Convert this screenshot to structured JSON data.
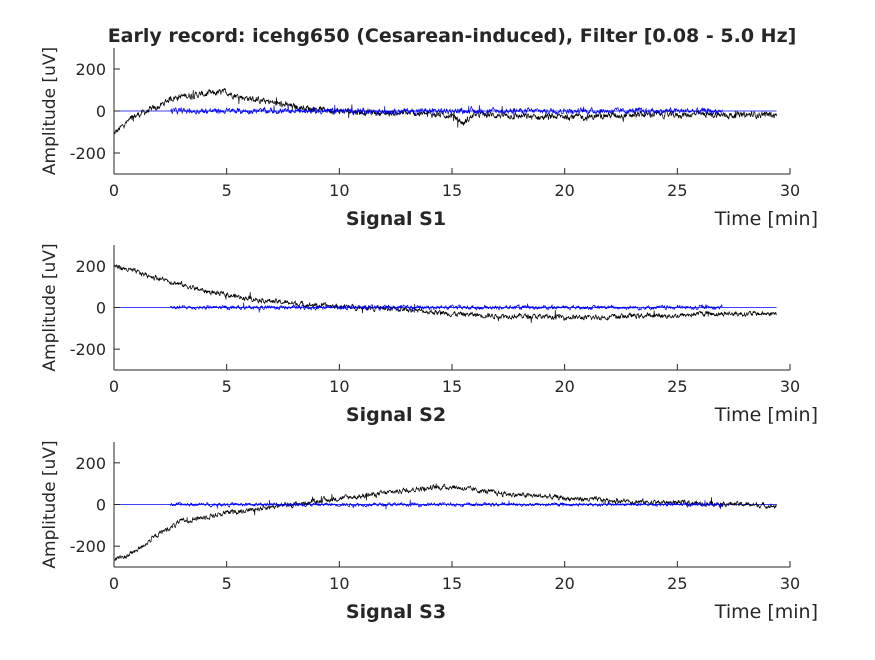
{
  "figure": {
    "title": "Early record: icehg650 (Cesarean-induced), Filter [0.08 - 5.0 Hz]"
  },
  "colors": {
    "raw": "#000000",
    "filtered": "#0000ff",
    "axis": "#262626"
  },
  "chart_data": [
    {
      "type": "line",
      "subplot_label": "Signal S1",
      "xlabel": "Time [min]",
      "ylabel": "Amplitude [uV]",
      "xlim": [
        0,
        30
      ],
      "ylim": [
        -300,
        300
      ],
      "xticks": [
        0,
        5,
        10,
        15,
        20,
        25,
        30
      ],
      "yticks": [
        200,
        0,
        -200
      ],
      "grid": false,
      "series": [
        {
          "color": "#000000",
          "x": [
            0,
            0.5,
            1,
            1.5,
            2,
            2.5,
            3,
            3.5,
            4,
            4.5,
            5,
            5.5,
            6,
            6.5,
            7,
            7.5,
            8,
            8.5,
            9,
            9.5,
            10,
            11,
            12,
            13,
            14,
            15,
            15.5,
            16,
            17,
            18,
            19,
            20,
            21,
            22,
            23,
            24,
            25,
            26,
            27,
            28,
            29,
            29.4
          ],
          "y": [
            -110,
            -60,
            -20,
            0,
            20,
            60,
            70,
            75,
            80,
            85,
            90,
            70,
            60,
            50,
            40,
            30,
            20,
            15,
            10,
            5,
            0,
            -5,
            -10,
            -10,
            -15,
            -20,
            -60,
            -15,
            -20,
            -25,
            -30,
            -25,
            -30,
            -20,
            -20,
            -15,
            -20,
            -15,
            -20,
            -20,
            -15,
            -20
          ],
          "noise": 25
        },
        {
          "color": "#0000ff",
          "x": [
            2.5,
            27
          ],
          "y": [
            0,
            0
          ],
          "noise": 22
        }
      ]
    },
    {
      "type": "line",
      "subplot_label": "Signal S2",
      "xlabel": "Time [min]",
      "ylabel": "Amplitude [uV]",
      "xlim": [
        0,
        30
      ],
      "ylim": [
        -300,
        300
      ],
      "xticks": [
        0,
        5,
        10,
        15,
        20,
        25,
        30
      ],
      "yticks": [
        200,
        0,
        -200
      ],
      "grid": false,
      "series": [
        {
          "color": "#000000",
          "x": [
            0,
            1,
            2,
            3,
            4,
            5,
            6,
            7,
            8,
            9,
            10,
            11,
            12,
            13,
            14,
            15,
            16,
            17,
            18,
            19,
            20,
            21,
            22,
            23,
            24,
            25,
            26,
            27,
            28,
            29,
            29.4
          ],
          "y": [
            200,
            170,
            140,
            110,
            80,
            60,
            45,
            30,
            20,
            10,
            5,
            0,
            -5,
            -10,
            -20,
            -30,
            -35,
            -40,
            -40,
            -45,
            -45,
            -50,
            -45,
            -40,
            -40,
            -40,
            -30,
            -30,
            -30,
            -30,
            -30
          ],
          "noise": 20
        },
        {
          "color": "#0000ff",
          "x": [
            2.5,
            27
          ],
          "y": [
            0,
            0
          ],
          "noise": 16
        }
      ]
    },
    {
      "type": "line",
      "subplot_label": "Signal S3",
      "xlabel": "Time [min]",
      "ylabel": "Amplitude [uV]",
      "xlim": [
        0,
        30
      ],
      "ylim": [
        -300,
        300
      ],
      "xticks": [
        0,
        5,
        10,
        15,
        20,
        25,
        30
      ],
      "yticks": [
        200,
        0,
        -200
      ],
      "grid": false,
      "series": [
        {
          "color": "#000000",
          "x": [
            0,
            0.5,
            1,
            1.5,
            2,
            2.5,
            3,
            4,
            5,
            6,
            7,
            8,
            9,
            10,
            11,
            12,
            13,
            14,
            15,
            16,
            17,
            18,
            19,
            20,
            21,
            22,
            23,
            24,
            25,
            26,
            27,
            28,
            29,
            29.4
          ],
          "y": [
            -260,
            -250,
            -220,
            -180,
            -140,
            -110,
            -80,
            -60,
            -40,
            -25,
            -10,
            0,
            15,
            30,
            40,
            55,
            70,
            80,
            85,
            70,
            55,
            45,
            40,
            30,
            25,
            20,
            15,
            10,
            10,
            5,
            5,
            0,
            -5,
            -10
          ],
          "noise": 20
        },
        {
          "color": "#0000ff",
          "x": [
            2.5,
            27
          ],
          "y": [
            0,
            0
          ],
          "noise": 14
        }
      ]
    }
  ]
}
